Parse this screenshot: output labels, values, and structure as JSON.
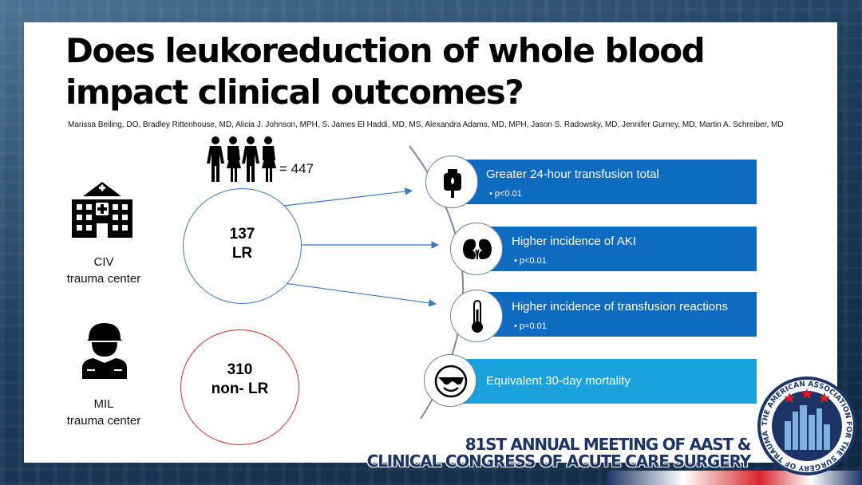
{
  "slide": {
    "title": "Does leukoreduction of whole blood impact clinical outcomes?",
    "authors": "Marissa Beiling, DO, Bradley Rittenhouse, MD, Alicia J. Johnson, MPH, S. James El Haddi, MD, MS, Alexandra Adams, MD, MPH, Jason S. Radowsky, MD, Jennifer Gurney, MD, Martin A. Schreiber, MD"
  },
  "population": {
    "icon": "people-group-icon",
    "label": "= 447"
  },
  "centers": [
    {
      "icon": "hospital-icon",
      "line1": "CIV",
      "line2": "trauma center"
    },
    {
      "icon": "soldier-icon",
      "line1": "MIL",
      "line2": "trauma center"
    }
  ],
  "groups": [
    {
      "count": "137",
      "label": "LR",
      "border_color": "#3a78c3"
    },
    {
      "count": "310",
      "label": "non- LR",
      "border_color": "#e02a2a"
    }
  ],
  "outcomes": [
    {
      "icon": "iv-blood-bag-icon",
      "title": "Greater 24-hour transfusion total",
      "stat": "• p<0.01",
      "color": "#0f6bc0"
    },
    {
      "icon": "kidneys-icon",
      "title": "Higher incidence of AKI",
      "stat": "• p<0.01",
      "color": "#0f6bc0"
    },
    {
      "icon": "thermometer-icon",
      "title": "Higher incidence of transfusion reactions",
      "stat": "• p=0.01",
      "color": "#0f6bc0"
    },
    {
      "icon": "sunglasses-face-icon",
      "title": "Equivalent 30-day mortality",
      "stat": "",
      "color": "#1aa2dd"
    }
  ],
  "footer": {
    "line1": "81ST ANNUAL MEETING OF AAST &",
    "line2": "CLINICAL CONGRESS OF ACUTE CARE SURGERY",
    "seal_text": "THE AMERICAN ASSOCIATION FOR THE SURGERY OF TRAUMA"
  }
}
